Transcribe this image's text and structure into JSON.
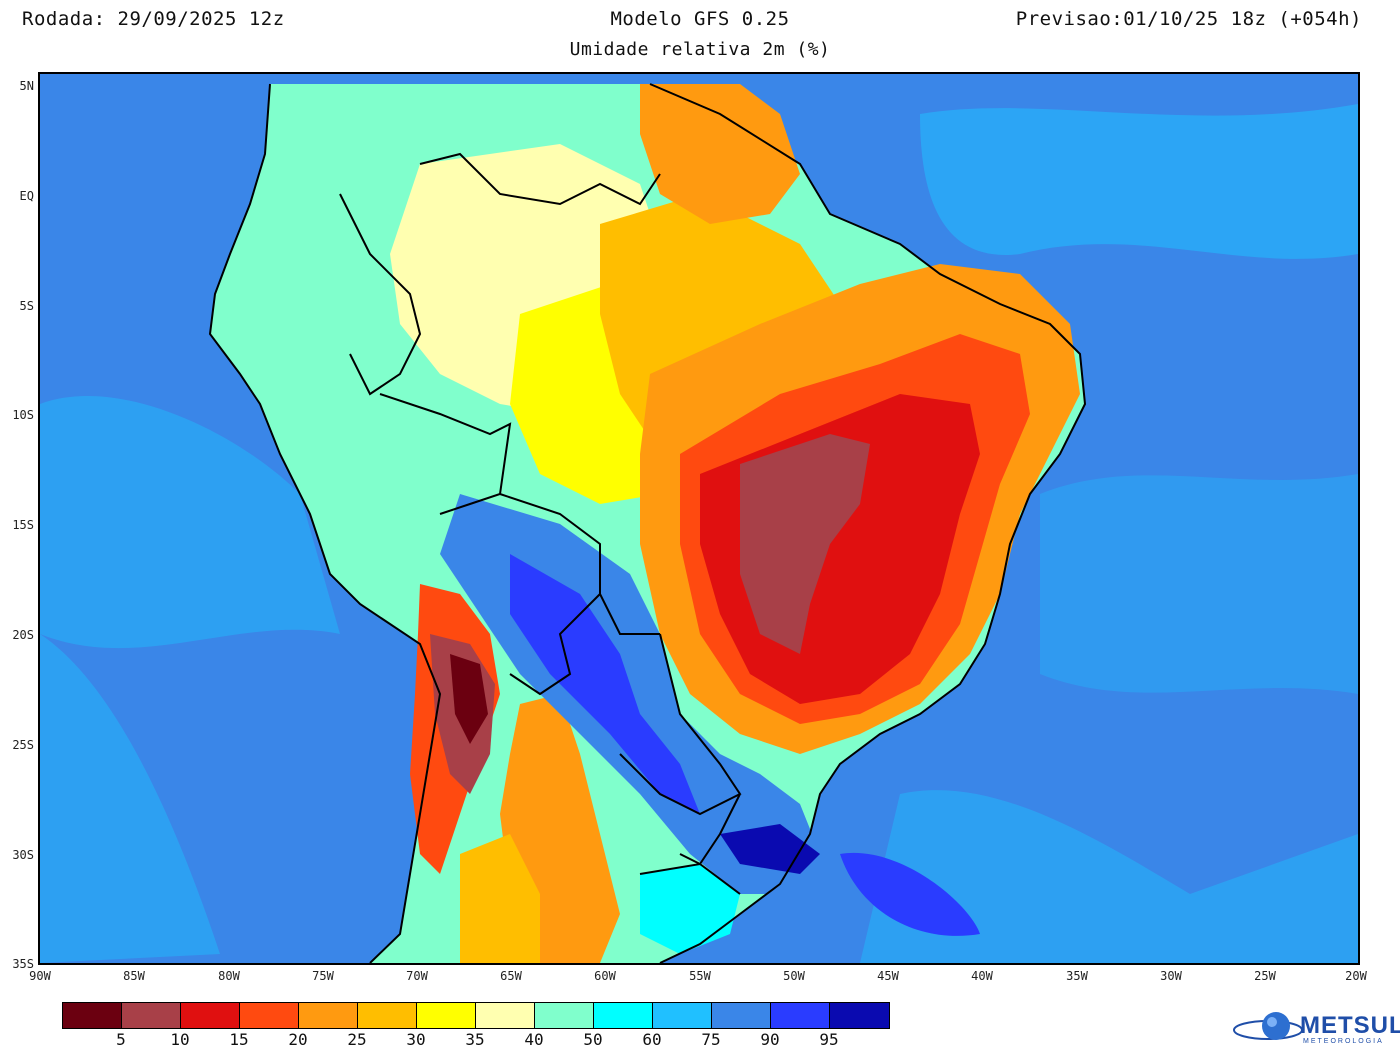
{
  "header": {
    "run": "Rodada: 29/09/2025 12z",
    "model": "Modelo GFS 0.25",
    "valid": "Previsao:01/10/25 18z (+054h)",
    "subtitle": "Umidade relativa 2m (%)"
  },
  "axes": {
    "lat_labels": [
      "5N",
      "EQ",
      "5S",
      "10S",
      "15S",
      "20S",
      "25S",
      "30S",
      "35S"
    ],
    "lon_labels": [
      "90W",
      "85W",
      "80W",
      "75W",
      "70W",
      "65W",
      "60W",
      "55W",
      "50W",
      "45W",
      "40W",
      "35W",
      "30W",
      "25W",
      "20W"
    ]
  },
  "colorbar": {
    "colors": [
      "#6b0010",
      "#a84048",
      "#e01010",
      "#ff4a10",
      "#ff9a10",
      "#ffbe00",
      "#ffff00",
      "#ffffb0",
      "#80ffcc",
      "#00ffff",
      "#20c0ff",
      "#3a86e8",
      "#2a3cff",
      "#0a0ab0"
    ],
    "ticks": [
      "5",
      "10",
      "15",
      "20",
      "25",
      "30",
      "35",
      "40",
      "50",
      "60",
      "75",
      "90",
      "95"
    ]
  },
  "logo": {
    "name": "METSUL",
    "subtitle": "METEOROLOGIA"
  }
}
